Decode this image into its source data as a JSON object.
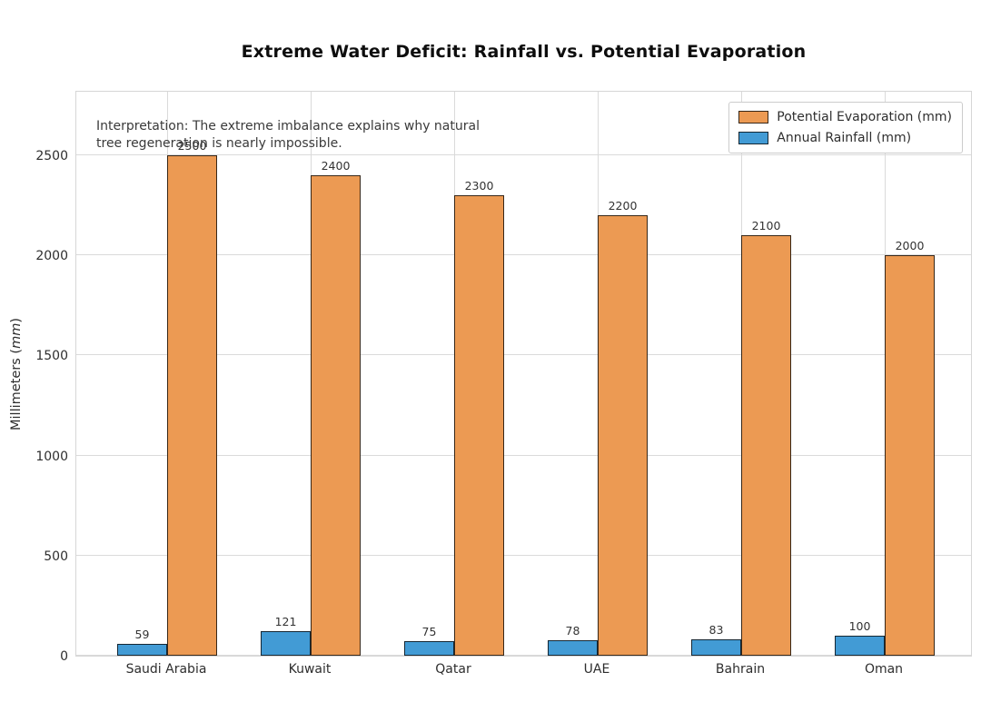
{
  "chart_data": {
    "type": "bar",
    "title": "Extreme Water Deficit: Rainfall vs. Potential Evaporation",
    "categories": [
      "Saudi Arabia",
      "Kuwait",
      "Qatar",
      "UAE",
      "Bahrain",
      "Oman"
    ],
    "series": [
      {
        "name": "Potential Evaporation (mm)",
        "color": "#EC9A53",
        "values": [
          2500,
          2400,
          2300,
          2200,
          2100,
          2000
        ]
      },
      {
        "name": "Annual Rainfall (mm)",
        "color": "#429BD5",
        "values": [
          59,
          121,
          75,
          78,
          83,
          100
        ]
      }
    ],
    "xlabel": "",
    "ylabel": "Millimeters (mm)",
    "yticks": [
      0,
      500,
      1000,
      1500,
      2000,
      2500
    ],
    "ylim": [
      0,
      2827
    ],
    "grid": true,
    "grid_color": "#dadada",
    "legend_position": "upper right",
    "value_labels": true,
    "annotation": "Interpretation: The extreme imbalance explains why natural\ntree regeneration is nearly impossible.",
    "bar_edge_color": "#0a0a0a",
    "background_color": "#ffffff"
  },
  "ylabel_display": {
    "prefix": "Millimeters (",
    "italic": "mm",
    "suffix": ")"
  }
}
